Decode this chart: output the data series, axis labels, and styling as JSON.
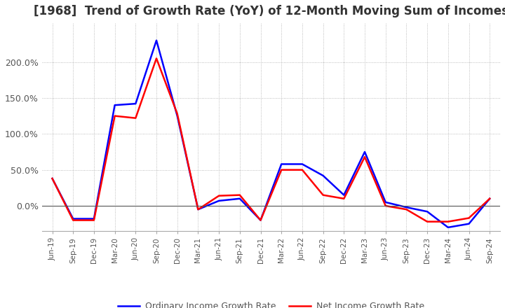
{
  "title": "[1968]  Trend of Growth Rate (YoY) of 12-Month Moving Sum of Incomes",
  "title_fontsize": 12,
  "background_color": "#ffffff",
  "grid_color": "#aaaaaa",
  "legend_labels": [
    "Ordinary Income Growth Rate",
    "Net Income Growth Rate"
  ],
  "line_colors": [
    "#0000ff",
    "#ff0000"
  ],
  "x_labels": [
    "Jun-19",
    "Sep-19",
    "Dec-19",
    "Mar-20",
    "Jun-20",
    "Sep-20",
    "Dec-20",
    "Mar-21",
    "Jun-21",
    "Sep-21",
    "Dec-21",
    "Mar-22",
    "Jun-22",
    "Sep-22",
    "Dec-22",
    "Mar-23",
    "Jun-23",
    "Sep-23",
    "Dec-23",
    "Mar-24",
    "Jun-24",
    "Sep-24"
  ],
  "ordinary_income": [
    0.38,
    -0.18,
    -0.18,
    1.4,
    1.42,
    2.3,
    1.25,
    -0.05,
    0.07,
    0.1,
    -0.2,
    0.58,
    0.58,
    0.42,
    0.15,
    0.75,
    0.05,
    -0.02,
    -0.08,
    -0.3,
    -0.25,
    0.1
  ],
  "net_income": [
    0.38,
    -0.2,
    -0.2,
    1.25,
    1.22,
    2.05,
    1.28,
    -0.05,
    0.14,
    0.15,
    -0.2,
    0.5,
    0.5,
    0.15,
    0.1,
    0.68,
    0.0,
    -0.05,
    -0.22,
    -0.22,
    -0.17,
    0.1
  ],
  "ylim": [
    -0.35,
    2.55
  ],
  "yticks": [
    0.0,
    0.5,
    1.0,
    1.5,
    2.0
  ],
  "ytick_labels": [
    "0.0%",
    "50.0%",
    "100.0%",
    "150.0%",
    "200.0%"
  ]
}
